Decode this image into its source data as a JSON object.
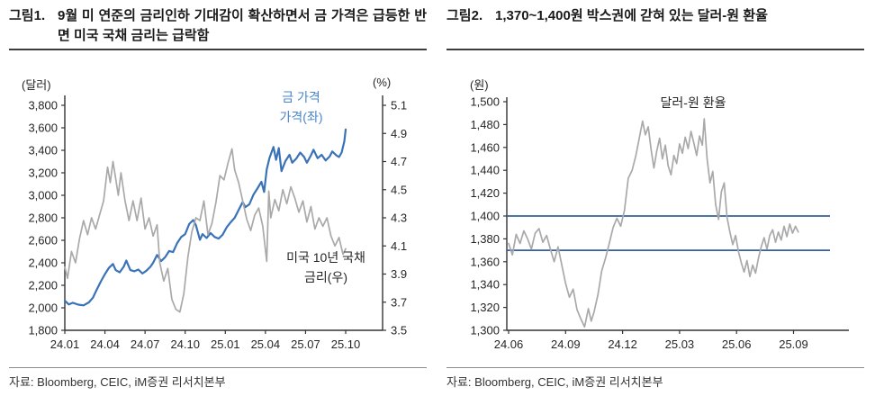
{
  "figures": [
    {
      "label": "그림1.",
      "title": "9월 미 연준의 금리인하 기대감이 확산하면서 금 가격은 급등한 반면 미국 국채 금리는 급락함",
      "source": "자료: Bloomberg, CEIC, iM증권 리서치본부"
    },
    {
      "label": "그림2.",
      "title": "1,370~1,400원 박스권에 갇혀 있는 달러-원 환율",
      "source": "자료: Bloomberg, CEIC, iM증권 리서치본부"
    }
  ],
  "chart_data": [
    {
      "type": "line",
      "title": "금 가격과 미국 10년 국채 금리",
      "unit_left": "(달러)",
      "unit_right": "(%)",
      "x_tick_labels": [
        "24.01",
        "24.04",
        "24.07",
        "24.10",
        "25.01",
        "25.04",
        "25.07",
        "25.10"
      ],
      "x_tick_values": [
        0,
        3,
        6,
        9,
        12,
        15,
        18,
        21
      ],
      "left_axis": {
        "min": 1800,
        "max": 3800,
        "tick_values": [
          1800,
          2000,
          2200,
          2400,
          2600,
          2800,
          3000,
          3200,
          3400,
          3600,
          3800
        ],
        "tick_labels": [
          "1,800",
          "2,000",
          "2,200",
          "2,400",
          "2,600",
          "2,800",
          "3,000",
          "3,200",
          "3,400",
          "3,600",
          "3,800"
        ]
      },
      "right_axis": {
        "min": 3.5,
        "max": 5.1,
        "tick_values": [
          3.5,
          3.7,
          3.9,
          4.1,
          4.3,
          4.5,
          4.7,
          4.9,
          5.1
        ],
        "tick_labels": [
          "3.5",
          "3.7",
          "3.9",
          "4.1",
          "4.3",
          "4.5",
          "4.7",
          "4.9",
          "5.1"
        ]
      },
      "series": [
        {
          "name": "금 가격(좌)",
          "label_lines": [
            "금 가격",
            "가격(좌)"
          ],
          "axis": "left",
          "color": "#3a72b8",
          "width": 2.2,
          "x": [
            0,
            0.3,
            0.6,
            1.0,
            1.4,
            1.8,
            2.1,
            2.4,
            2.7,
            3.0,
            3.3,
            3.6,
            3.8,
            4.1,
            4.4,
            4.6,
            4.9,
            5.2,
            5.5,
            5.8,
            6.1,
            6.4,
            6.6,
            6.9,
            7.2,
            7.5,
            7.8,
            8.1,
            8.4,
            8.7,
            9.0,
            9.3,
            9.6,
            9.8,
            10.1,
            10.3,
            10.6,
            10.9,
            11.2,
            11.5,
            11.8,
            12.1,
            12.4,
            12.7,
            13.0,
            13.3,
            13.5,
            13.8,
            14.1,
            14.4,
            14.7,
            14.9,
            15.1,
            15.3,
            15.6,
            15.8,
            16.0,
            16.2,
            16.5,
            16.8,
            17.0,
            17.3,
            17.6,
            17.9,
            18.1,
            18.4,
            18.6,
            18.9,
            19.2,
            19.5,
            19.8,
            20.0,
            20.3,
            20.5,
            20.7,
            20.9,
            21.0
          ],
          "y": [
            2063,
            2030,
            2045,
            2028,
            2022,
            2048,
            2090,
            2165,
            2235,
            2300,
            2355,
            2390,
            2335,
            2315,
            2365,
            2420,
            2335,
            2325,
            2340,
            2305,
            2330,
            2365,
            2400,
            2470,
            2415,
            2450,
            2505,
            2495,
            2575,
            2630,
            2655,
            2745,
            2780,
            2735,
            2605,
            2655,
            2620,
            2665,
            2630,
            2615,
            2650,
            2715,
            2760,
            2800,
            2870,
            2940,
            2895,
            2920,
            3005,
            3060,
            3120,
            3030,
            3230,
            3330,
            3430,
            3315,
            3420,
            3215,
            3305,
            3360,
            3290,
            3325,
            3380,
            3340,
            3290,
            3355,
            3405,
            3330,
            3360,
            3310,
            3345,
            3390,
            3355,
            3340,
            3380,
            3480,
            3585
          ]
        },
        {
          "name": "미국 10년 국채 금리(우)",
          "label_lines": [
            "미국 10년 국채",
            "금리(우)"
          ],
          "axis": "right",
          "color": "#a9a9a9",
          "width": 1.7,
          "x": [
            0,
            0.2,
            0.5,
            0.8,
            1.1,
            1.4,
            1.7,
            2.0,
            2.3,
            2.6,
            2.9,
            3.2,
            3.4,
            3.6,
            3.8,
            4.0,
            4.2,
            4.5,
            4.8,
            5.1,
            5.4,
            5.7,
            6.0,
            6.3,
            6.6,
            6.9,
            7.1,
            7.4,
            7.7,
            8.0,
            8.3,
            8.6,
            8.9,
            9.2,
            9.5,
            9.8,
            10.1,
            10.4,
            10.7,
            11.0,
            11.3,
            11.6,
            11.9,
            12.2,
            12.5,
            12.7,
            13.0,
            13.3,
            13.6,
            13.9,
            14.2,
            14.5,
            14.8,
            15.1,
            15.25,
            15.4,
            15.7,
            16.0,
            16.3,
            16.6,
            16.9,
            17.2,
            17.5,
            17.8,
            18.1,
            18.4,
            18.7,
            19.0,
            19.3,
            19.6,
            19.9,
            20.2,
            20.5,
            20.8,
            21.0
          ],
          "y": [
            3.95,
            3.87,
            4.06,
            3.98,
            4.15,
            4.28,
            4.18,
            4.3,
            4.22,
            4.32,
            4.42,
            4.66,
            4.55,
            4.7,
            4.58,
            4.46,
            4.62,
            4.42,
            4.28,
            4.42,
            4.28,
            4.44,
            4.22,
            4.3,
            4.17,
            4.25,
            3.98,
            3.85,
            3.94,
            3.72,
            3.65,
            3.63,
            3.76,
            4.02,
            4.2,
            4.3,
            4.28,
            4.42,
            4.18,
            4.26,
            4.41,
            4.6,
            4.57,
            4.69,
            4.79,
            4.64,
            4.55,
            4.42,
            4.29,
            4.21,
            4.32,
            4.37,
            4.24,
            3.99,
            4.49,
            4.3,
            4.43,
            4.35,
            4.5,
            4.4,
            4.52,
            4.44,
            4.34,
            4.42,
            4.27,
            4.38,
            4.22,
            4.3,
            4.24,
            4.3,
            4.17,
            4.1,
            4.16,
            4.04,
            4.08
          ]
        }
      ]
    },
    {
      "type": "line",
      "title": "달러-원 환율",
      "unit_left": "(원)",
      "x_tick_labels": [
        "24.06",
        "24.09",
        "24.12",
        "25.03",
        "25.06",
        "25.09"
      ],
      "x_tick_values": [
        0,
        3,
        6,
        9,
        12,
        15
      ],
      "left_axis": {
        "min": 1300,
        "max": 1500,
        "tick_values": [
          1300,
          1320,
          1340,
          1360,
          1380,
          1400,
          1420,
          1440,
          1460,
          1480,
          1500
        ],
        "tick_labels": [
          "1,300",
          "1,320",
          "1,340",
          "1,360",
          "1,380",
          "1,400",
          "1,420",
          "1,440",
          "1,460",
          "1,480",
          "1,500"
        ]
      },
      "ref_lines": {
        "color": "#35619c",
        "width": 1.8,
        "values": [
          1400,
          1370
        ]
      },
      "series": [
        {
          "name": "달러-원 환율",
          "label": "달러-원 환율",
          "axis": "left",
          "color": "#a9a9a9",
          "width": 1.7,
          "x": [
            0,
            0.2,
            0.4,
            0.6,
            0.8,
            1.0,
            1.2,
            1.4,
            1.6,
            1.8,
            2.0,
            2.2,
            2.4,
            2.6,
            2.8,
            3.0,
            3.2,
            3.4,
            3.6,
            3.8,
            4.0,
            4.2,
            4.35,
            4.5,
            4.7,
            4.9,
            5.1,
            5.3,
            5.5,
            5.7,
            5.9,
            6.1,
            6.3,
            6.5,
            6.7,
            6.9,
            7.05,
            7.2,
            7.35,
            7.5,
            7.65,
            7.8,
            7.95,
            8.1,
            8.25,
            8.4,
            8.55,
            8.7,
            8.85,
            9.0,
            9.15,
            9.3,
            9.45,
            9.6,
            9.75,
            9.9,
            10.05,
            10.2,
            10.3,
            10.45,
            10.6,
            10.75,
            10.9,
            11.05,
            11.2,
            11.35,
            11.5,
            11.65,
            11.8,
            11.95,
            12.1,
            12.25,
            12.4,
            12.55,
            12.7,
            12.85,
            13.0,
            13.15,
            13.3,
            13.45,
            13.6,
            13.75,
            13.9,
            14.05,
            14.2,
            14.35,
            14.5,
            14.65,
            14.8,
            14.95,
            15.1,
            15.25
          ],
          "y": [
            1376,
            1366,
            1384,
            1376,
            1387,
            1380,
            1371,
            1385,
            1389,
            1377,
            1383,
            1371,
            1360,
            1373,
            1357,
            1341,
            1329,
            1336,
            1318,
            1310,
            1303,
            1319,
            1308,
            1316,
            1331,
            1352,
            1363,
            1376,
            1390,
            1398,
            1391,
            1405,
            1433,
            1440,
            1453,
            1470,
            1483,
            1471,
            1478,
            1458,
            1442,
            1457,
            1468,
            1450,
            1462,
            1444,
            1436,
            1453,
            1446,
            1463,
            1455,
            1469,
            1459,
            1474,
            1464,
            1453,
            1470,
            1462,
            1485,
            1450,
            1429,
            1439,
            1410,
            1397,
            1421,
            1429,
            1399,
            1386,
            1375,
            1383,
            1369,
            1359,
            1351,
            1361,
            1347,
            1357,
            1350,
            1363,
            1373,
            1381,
            1371,
            1383,
            1388,
            1377,
            1386,
            1379,
            1391,
            1382,
            1393,
            1385,
            1391,
            1386
          ]
        }
      ]
    }
  ]
}
